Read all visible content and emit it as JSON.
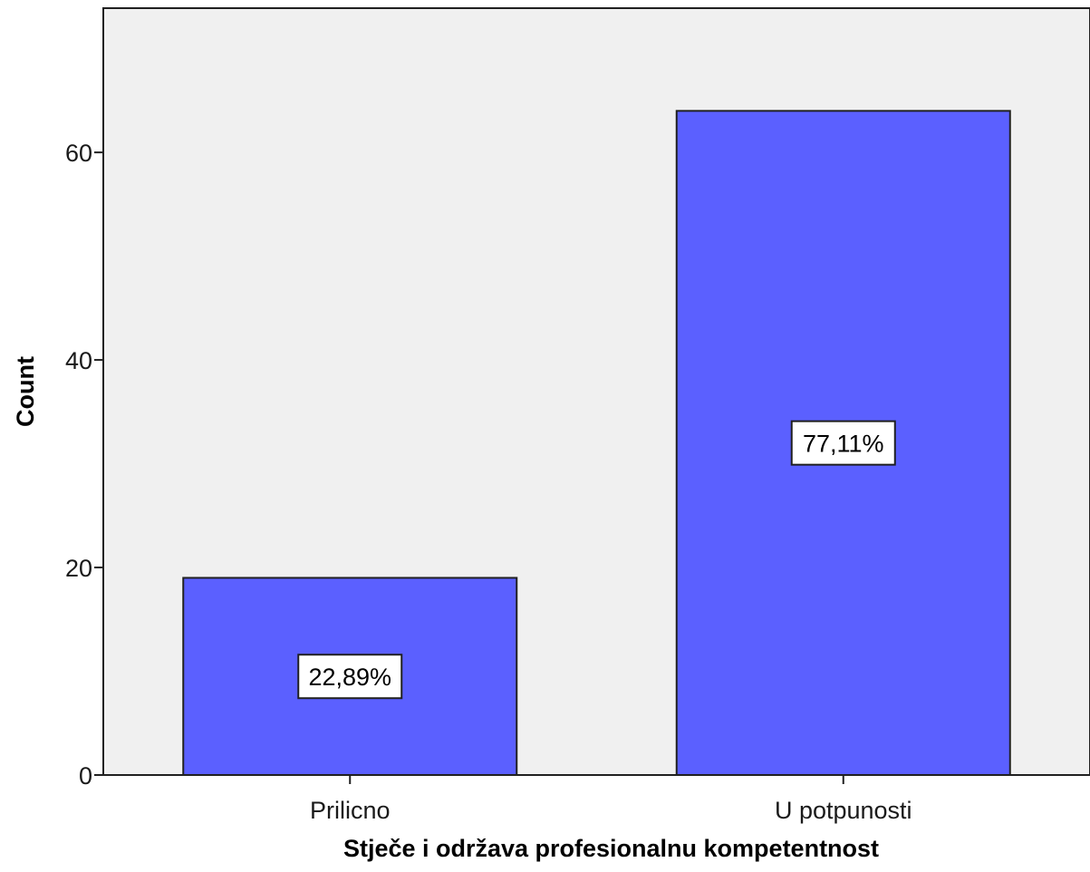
{
  "colors": {
    "plot_background": "#f0f0f0",
    "bar_fill": "#5b60ff",
    "bar_stroke": "#202020",
    "axis": "#202020",
    "label_box_fill": "#ffffff"
  },
  "chart_data": {
    "type": "bar",
    "title": "",
    "xlabel": "Stječe i održava profesionalnu kompetentnost",
    "ylabel": "Count",
    "categories": [
      "Prilicno",
      "U potpunosti"
    ],
    "values": [
      19,
      64
    ],
    "data_labels": [
      "22,89%",
      "77,11%"
    ],
    "ylim": [
      0,
      73.9
    ],
    "yticks": [
      0,
      20,
      40,
      60
    ],
    "grid": false,
    "legend": "none"
  }
}
